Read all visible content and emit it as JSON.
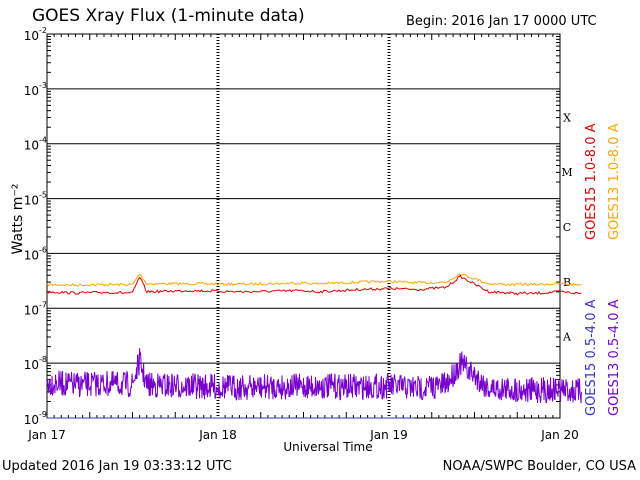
{
  "header": {
    "title": "GOES Xray Flux (1-minute data)",
    "begin": "Begin:  2016 Jan 17 0000 UTC"
  },
  "footer": {
    "updated": "Updated 2016 Jan 19 03:33:12 UTC",
    "credit": "NOAA/SWPC Boulder, CO USA"
  },
  "chart_data": {
    "type": "line",
    "xlabel": "Universal Time",
    "ylabel": "Watts m⁻²",
    "xlim": [
      "2016-01-17",
      "2016-01-20"
    ],
    "ylim": [
      1e-09,
      0.01
    ],
    "log_y": true,
    "grid": true,
    "x_ticks": [
      "Jan 17",
      "Jan 18",
      "Jan 19",
      "Jan 20"
    ],
    "y_ticks": [
      {
        "value": 0.01,
        "mantissa": "10",
        "exp": "-2"
      },
      {
        "value": 0.001,
        "mantissa": "10",
        "exp": "-3"
      },
      {
        "value": 0.0001,
        "mantissa": "10",
        "exp": "-4"
      },
      {
        "value": 1e-05,
        "mantissa": "10",
        "exp": "-5"
      },
      {
        "value": 1e-06,
        "mantissa": "10",
        "exp": "-6"
      },
      {
        "value": 1e-07,
        "mantissa": "10",
        "exp": "-7"
      },
      {
        "value": 1e-08,
        "mantissa": "10",
        "exp": "-8"
      },
      {
        "value": 1e-09,
        "mantissa": "10",
        "exp": "-9"
      }
    ],
    "flare_classes": [
      "X",
      "M",
      "C",
      "B",
      "A"
    ],
    "legend_placement": "right (vertical text)",
    "series": [
      {
        "name": "GOES15 1.0-8.0 A",
        "color": "#dd0000",
        "x": [
          "2016-01-17 00:00",
          "2016-01-17 04:00",
          "2016-01-17 08:00",
          "2016-01-17 12:00",
          "2016-01-17 13:00",
          "2016-01-17 14:00",
          "2016-01-17 20:00",
          "2016-01-18 04:00",
          "2016-01-18 12:00",
          "2016-01-18 14:00",
          "2016-01-18 20:00",
          "2016-01-19 00:00",
          "2016-01-19 04:00",
          "2016-01-19 08:00",
          "2016-01-19 10:00",
          "2016-01-19 14:00",
          "2016-01-19 17:00",
          "2016-01-19 18:00",
          "2016-01-19 19:00",
          "2016-01-19 20:00",
          "2016-01-20 00:00",
          "2016-01-20 02:00",
          "2016-01-20 03:00"
        ],
        "values": [
          2e-07,
          1.9e-07,
          1.95e-07,
          1.9e-07,
          3.7e-07,
          2e-07,
          2.1e-07,
          2e-07,
          2.1e-07,
          2e-07,
          2.2e-07,
          2.3e-07,
          2.2e-07,
          2.4e-07,
          3.8e-07,
          2e-07,
          1.9e-07,
          1.85e-07,
          1.9e-07,
          1.85e-07,
          2e-07,
          1.9e-07,
          1.85e-07
        ]
      },
      {
        "name": "GOES13 1.0-8.0 A",
        "color": "#ffa500",
        "x": [
          "2016-01-17 00:00",
          "2016-01-17 04:00",
          "2016-01-17 08:00",
          "2016-01-17 12:00",
          "2016-01-17 13:00",
          "2016-01-17 14:00",
          "2016-01-17 20:00",
          "2016-01-18 04:00",
          "2016-01-18 12:00",
          "2016-01-18 14:00",
          "2016-01-18 20:00",
          "2016-01-19 00:00",
          "2016-01-19 04:00",
          "2016-01-19 08:00",
          "2016-01-19 10:00",
          "2016-01-19 14:00",
          "2016-01-19 17:00",
          "2016-01-19 18:00",
          "2016-01-19 19:00",
          "2016-01-19 20:00",
          "2016-01-20 00:00",
          "2016-01-20 02:00",
          "2016-01-20 03:00"
        ],
        "values": [
          2.7e-07,
          2.65e-07,
          2.7e-07,
          2.7e-07,
          4.2e-07,
          2.8e-07,
          2.8e-07,
          2.75e-07,
          2.9e-07,
          2.8e-07,
          3e-07,
          3.1e-07,
          2.9e-07,
          3e-07,
          4.3e-07,
          2.8e-07,
          2.7e-07,
          2.7e-07,
          2.75e-07,
          2.7e-07,
          2.8e-07,
          2.7e-07,
          2.75e-07
        ]
      },
      {
        "name": "GOES15 0.5-4.0 A",
        "color": "#3333cc",
        "x": [
          "2016-01-17 00:00",
          "2016-01-19 03:33"
        ],
        "values": [
          1e-09,
          1e-09
        ]
      },
      {
        "name": "GOES13 0.5-4.0 A",
        "color": "#7700cc",
        "x": [
          "2016-01-17 00:00",
          "2016-01-17 04:00",
          "2016-01-17 08:00",
          "2016-01-17 12:00",
          "2016-01-17 13:00",
          "2016-01-17 14:00",
          "2016-01-17 20:00",
          "2016-01-18 04:00",
          "2016-01-18 12:00",
          "2016-01-18 20:00",
          "2016-01-19 00:00",
          "2016-01-19 04:00",
          "2016-01-19 08:00",
          "2016-01-19 10:00",
          "2016-01-19 14:00",
          "2016-01-19 20:00",
          "2016-01-20 00:00",
          "2016-01-20 03:00"
        ],
        "values": [
          4.5e-09,
          4e-09,
          4.2e-09,
          4e-09,
          1.1e-08,
          4e-09,
          3.8e-09,
          3.6e-09,
          3.8e-09,
          3.7e-09,
          3.8e-09,
          3.5e-09,
          4e-09,
          1e-08,
          3.5e-09,
          3.2e-09,
          3.3e-09,
          3e-09
        ]
      }
    ]
  }
}
